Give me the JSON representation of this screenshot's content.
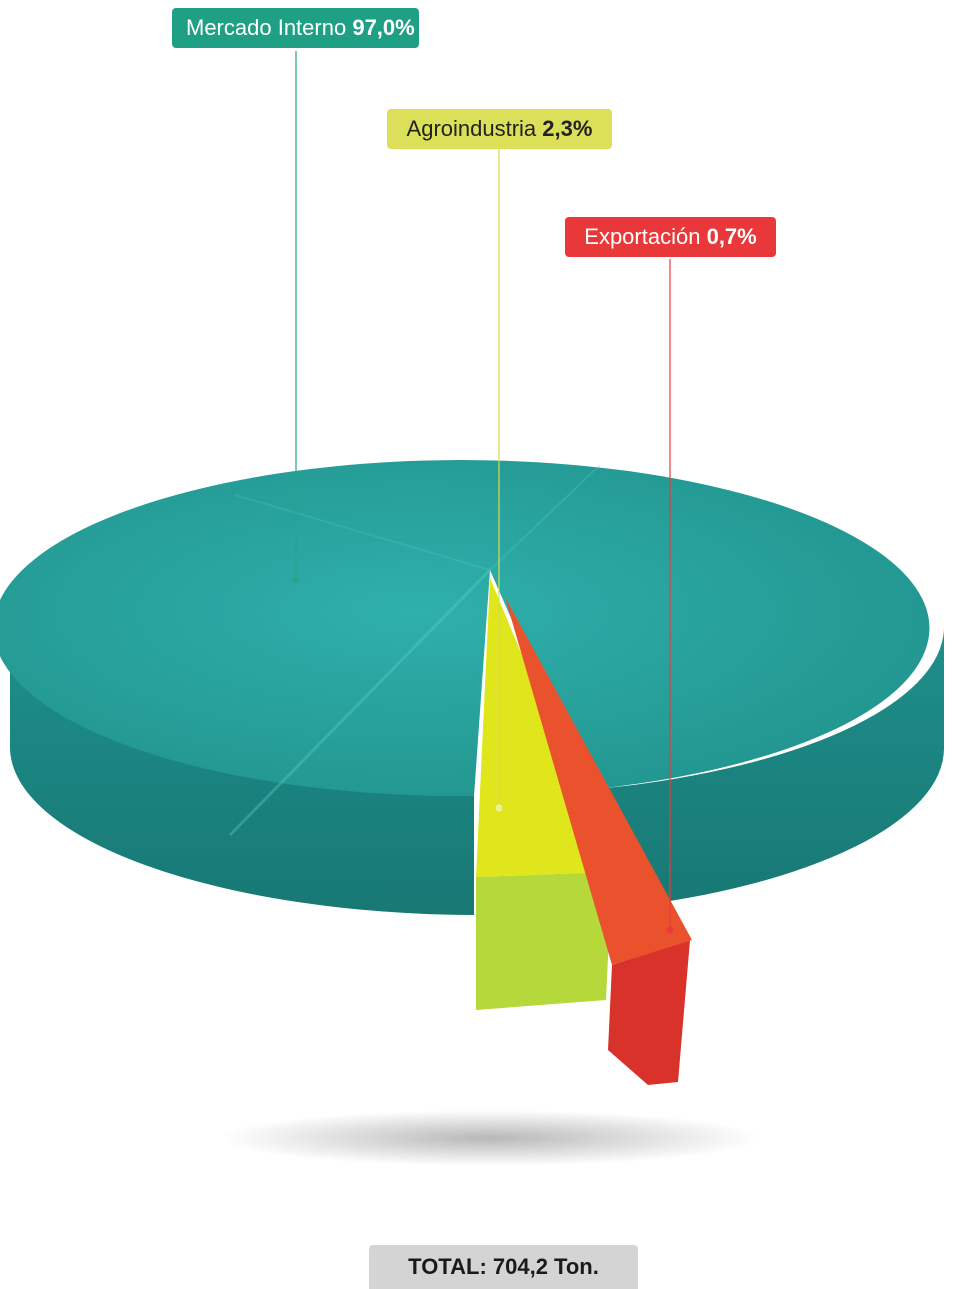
{
  "chart_data": {
    "type": "pie",
    "slices": [
      {
        "label": "Mercado Interno",
        "value_label": "97,0%",
        "value": 97.0,
        "color": "#1fa091"
      },
      {
        "label": "Agroindustria",
        "value_label": "2,3%",
        "value": 2.3,
        "color": "#d8d840"
      },
      {
        "label": "Exportación",
        "value_label": "0,7%",
        "value": 0.7,
        "color": "#e8383a"
      }
    ],
    "total_label": "TOTAL: 704,2 Ton."
  },
  "colors": {
    "pie_top": "#2aa8a5",
    "pie_side": "#1d8a87",
    "agro_top": "#dfe61a",
    "agro_side": "#b4d63a",
    "export_top": "#e6452f",
    "export_side": "#d12f2a",
    "total_bg": "#d4d4d4"
  }
}
